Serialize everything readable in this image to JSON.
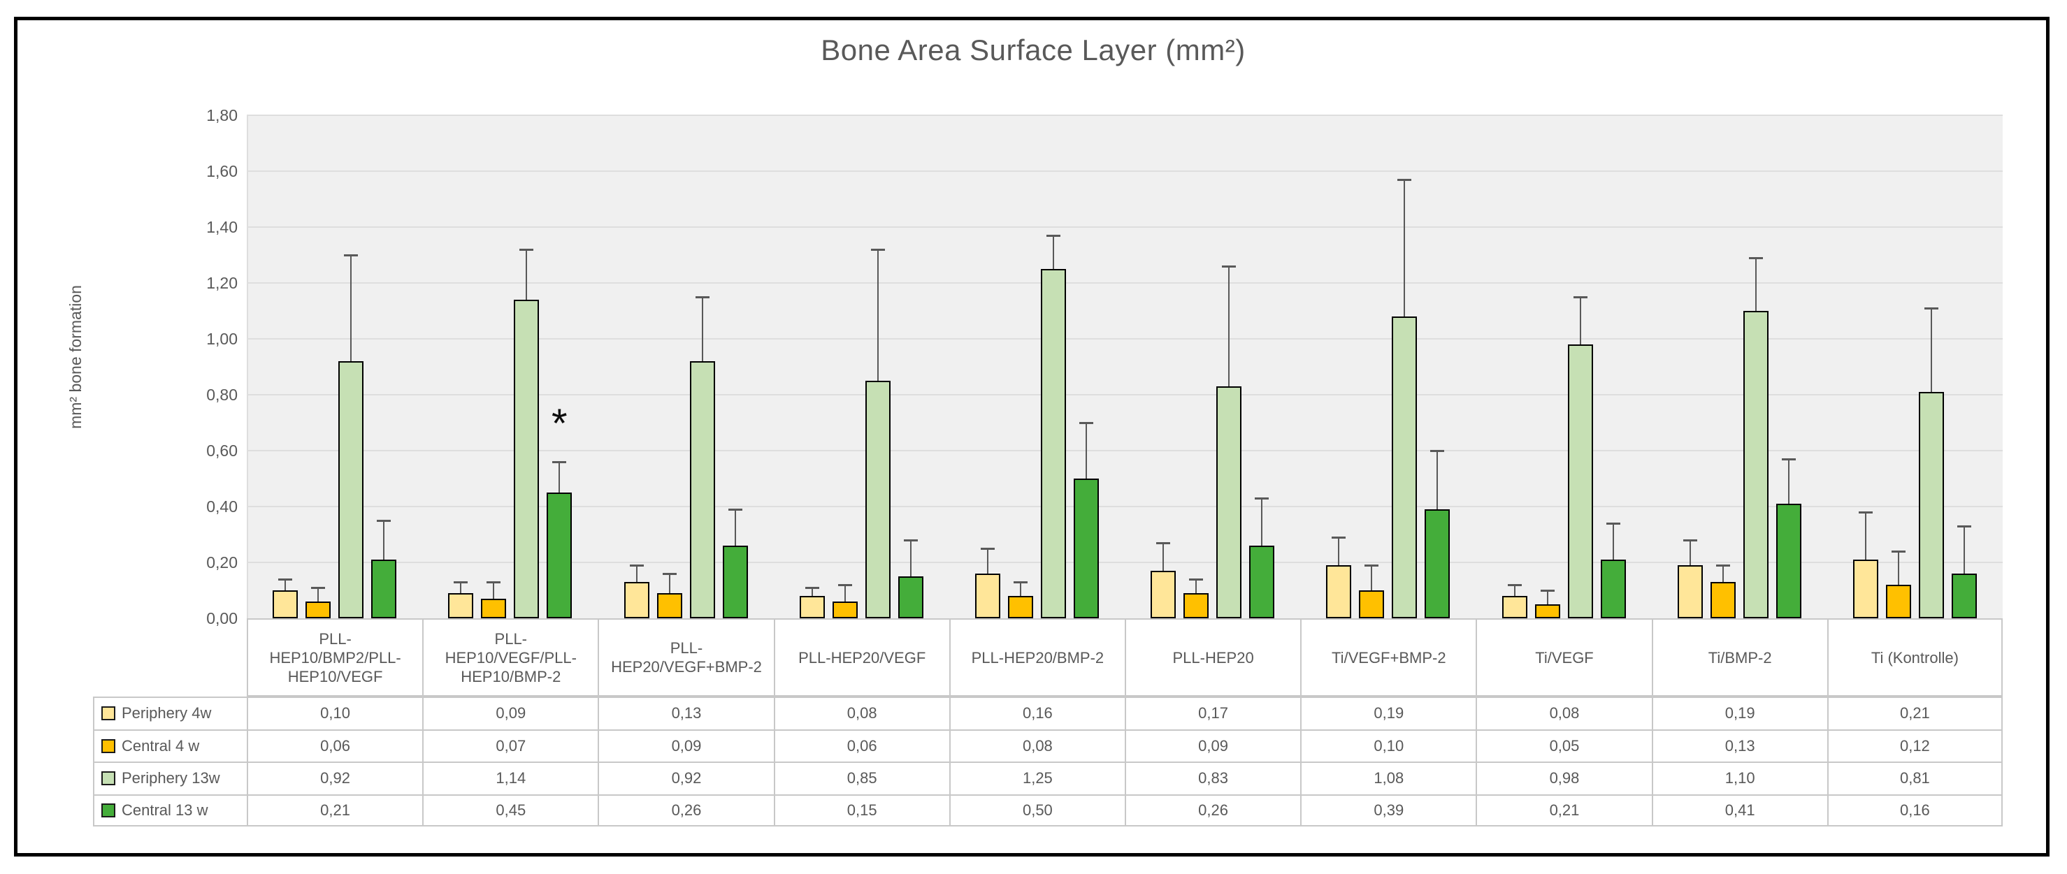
{
  "window": {
    "border_color": "#000000",
    "background_color": "#ffffff"
  },
  "chart_data": {
    "type": "bar",
    "title": "Bone Area Surface Layer (mm²)",
    "ylabel": "mm² bone formation",
    "ylim": [
      0,
      1.8
    ],
    "ytick_step": 0.2,
    "ytick_labels": [
      "0,00",
      "0,20",
      "0,40",
      "0,60",
      "0,80",
      "1,00",
      "1,20",
      "1,40",
      "1,60",
      "1,80"
    ],
    "grid": true,
    "plot_background": "#F0F0F0",
    "gridline_color": "#DEDEDE",
    "error_bar_color": "#595959",
    "text_color": "#595959",
    "legend_position": "table-left",
    "categories": [
      "PLL-HEP10/BMP2/PLL-HEP10/VEGF",
      "PLL-HEP10/VEGF/PLL-HEP10/BMP-2",
      "PLL-HEP20/VEGF+BMP-2",
      "PLL-HEP20/VEGF",
      "PLL-HEP20/BMP-2",
      "PLL-HEP20",
      "Ti/VEGF+BMP-2",
      "Ti/VEGF",
      "Ti/BMP-2",
      "Ti (Kontrolle)"
    ],
    "series": [
      {
        "name": "Periphery 4w",
        "color": "#FFE699",
        "values": [
          0.1,
          0.09,
          0.13,
          0.08,
          0.16,
          0.17,
          0.19,
          0.08,
          0.19,
          0.21
        ],
        "display": [
          "0,10",
          "0,09",
          "0,13",
          "0,08",
          "0,16",
          "0,17",
          "0,19",
          "0,08",
          "0,19",
          "0,21"
        ],
        "error_top": [
          0.14,
          0.13,
          0.19,
          0.11,
          0.25,
          0.27,
          0.29,
          0.12,
          0.28,
          0.38
        ]
      },
      {
        "name": "Central 4 w",
        "color": "#FFC000",
        "values": [
          0.06,
          0.07,
          0.09,
          0.06,
          0.08,
          0.09,
          0.1,
          0.05,
          0.13,
          0.12
        ],
        "display": [
          "0,06",
          "0,07",
          "0,09",
          "0,06",
          "0,08",
          "0,09",
          "0,10",
          "0,05",
          "0,13",
          "0,12"
        ],
        "error_top": [
          0.11,
          0.13,
          0.16,
          0.12,
          0.13,
          0.14,
          0.19,
          0.1,
          0.19,
          0.24
        ]
      },
      {
        "name": "Periphery 13w",
        "color": "#C6E0B4",
        "values": [
          0.92,
          1.14,
          0.92,
          0.85,
          1.25,
          0.83,
          1.08,
          0.98,
          1.1,
          0.81
        ],
        "display": [
          "0,92",
          "1,14",
          "0,92",
          "0,85",
          "1,25",
          "0,83",
          "1,08",
          "0,98",
          "1,10",
          "0,81"
        ],
        "error_top": [
          1.3,
          1.32,
          1.15,
          1.32,
          1.37,
          1.26,
          1.57,
          1.15,
          1.29,
          1.11
        ]
      },
      {
        "name": "Central 13 w",
        "color": "#44AD3A",
        "values": [
          0.21,
          0.45,
          0.26,
          0.15,
          0.5,
          0.26,
          0.39,
          0.21,
          0.41,
          0.16
        ],
        "display": [
          "0,21",
          "0,45",
          "0,26",
          "0,15",
          "0,50",
          "0,26",
          "0,39",
          "0,21",
          "0,41",
          "0,16"
        ],
        "error_top": [
          0.35,
          0.56,
          0.39,
          0.28,
          0.7,
          0.43,
          0.6,
          0.34,
          0.57,
          0.33
        ]
      }
    ],
    "annotation": {
      "text": "*",
      "category_index": 1,
      "series_index": 3,
      "y_value": 0.73
    }
  }
}
